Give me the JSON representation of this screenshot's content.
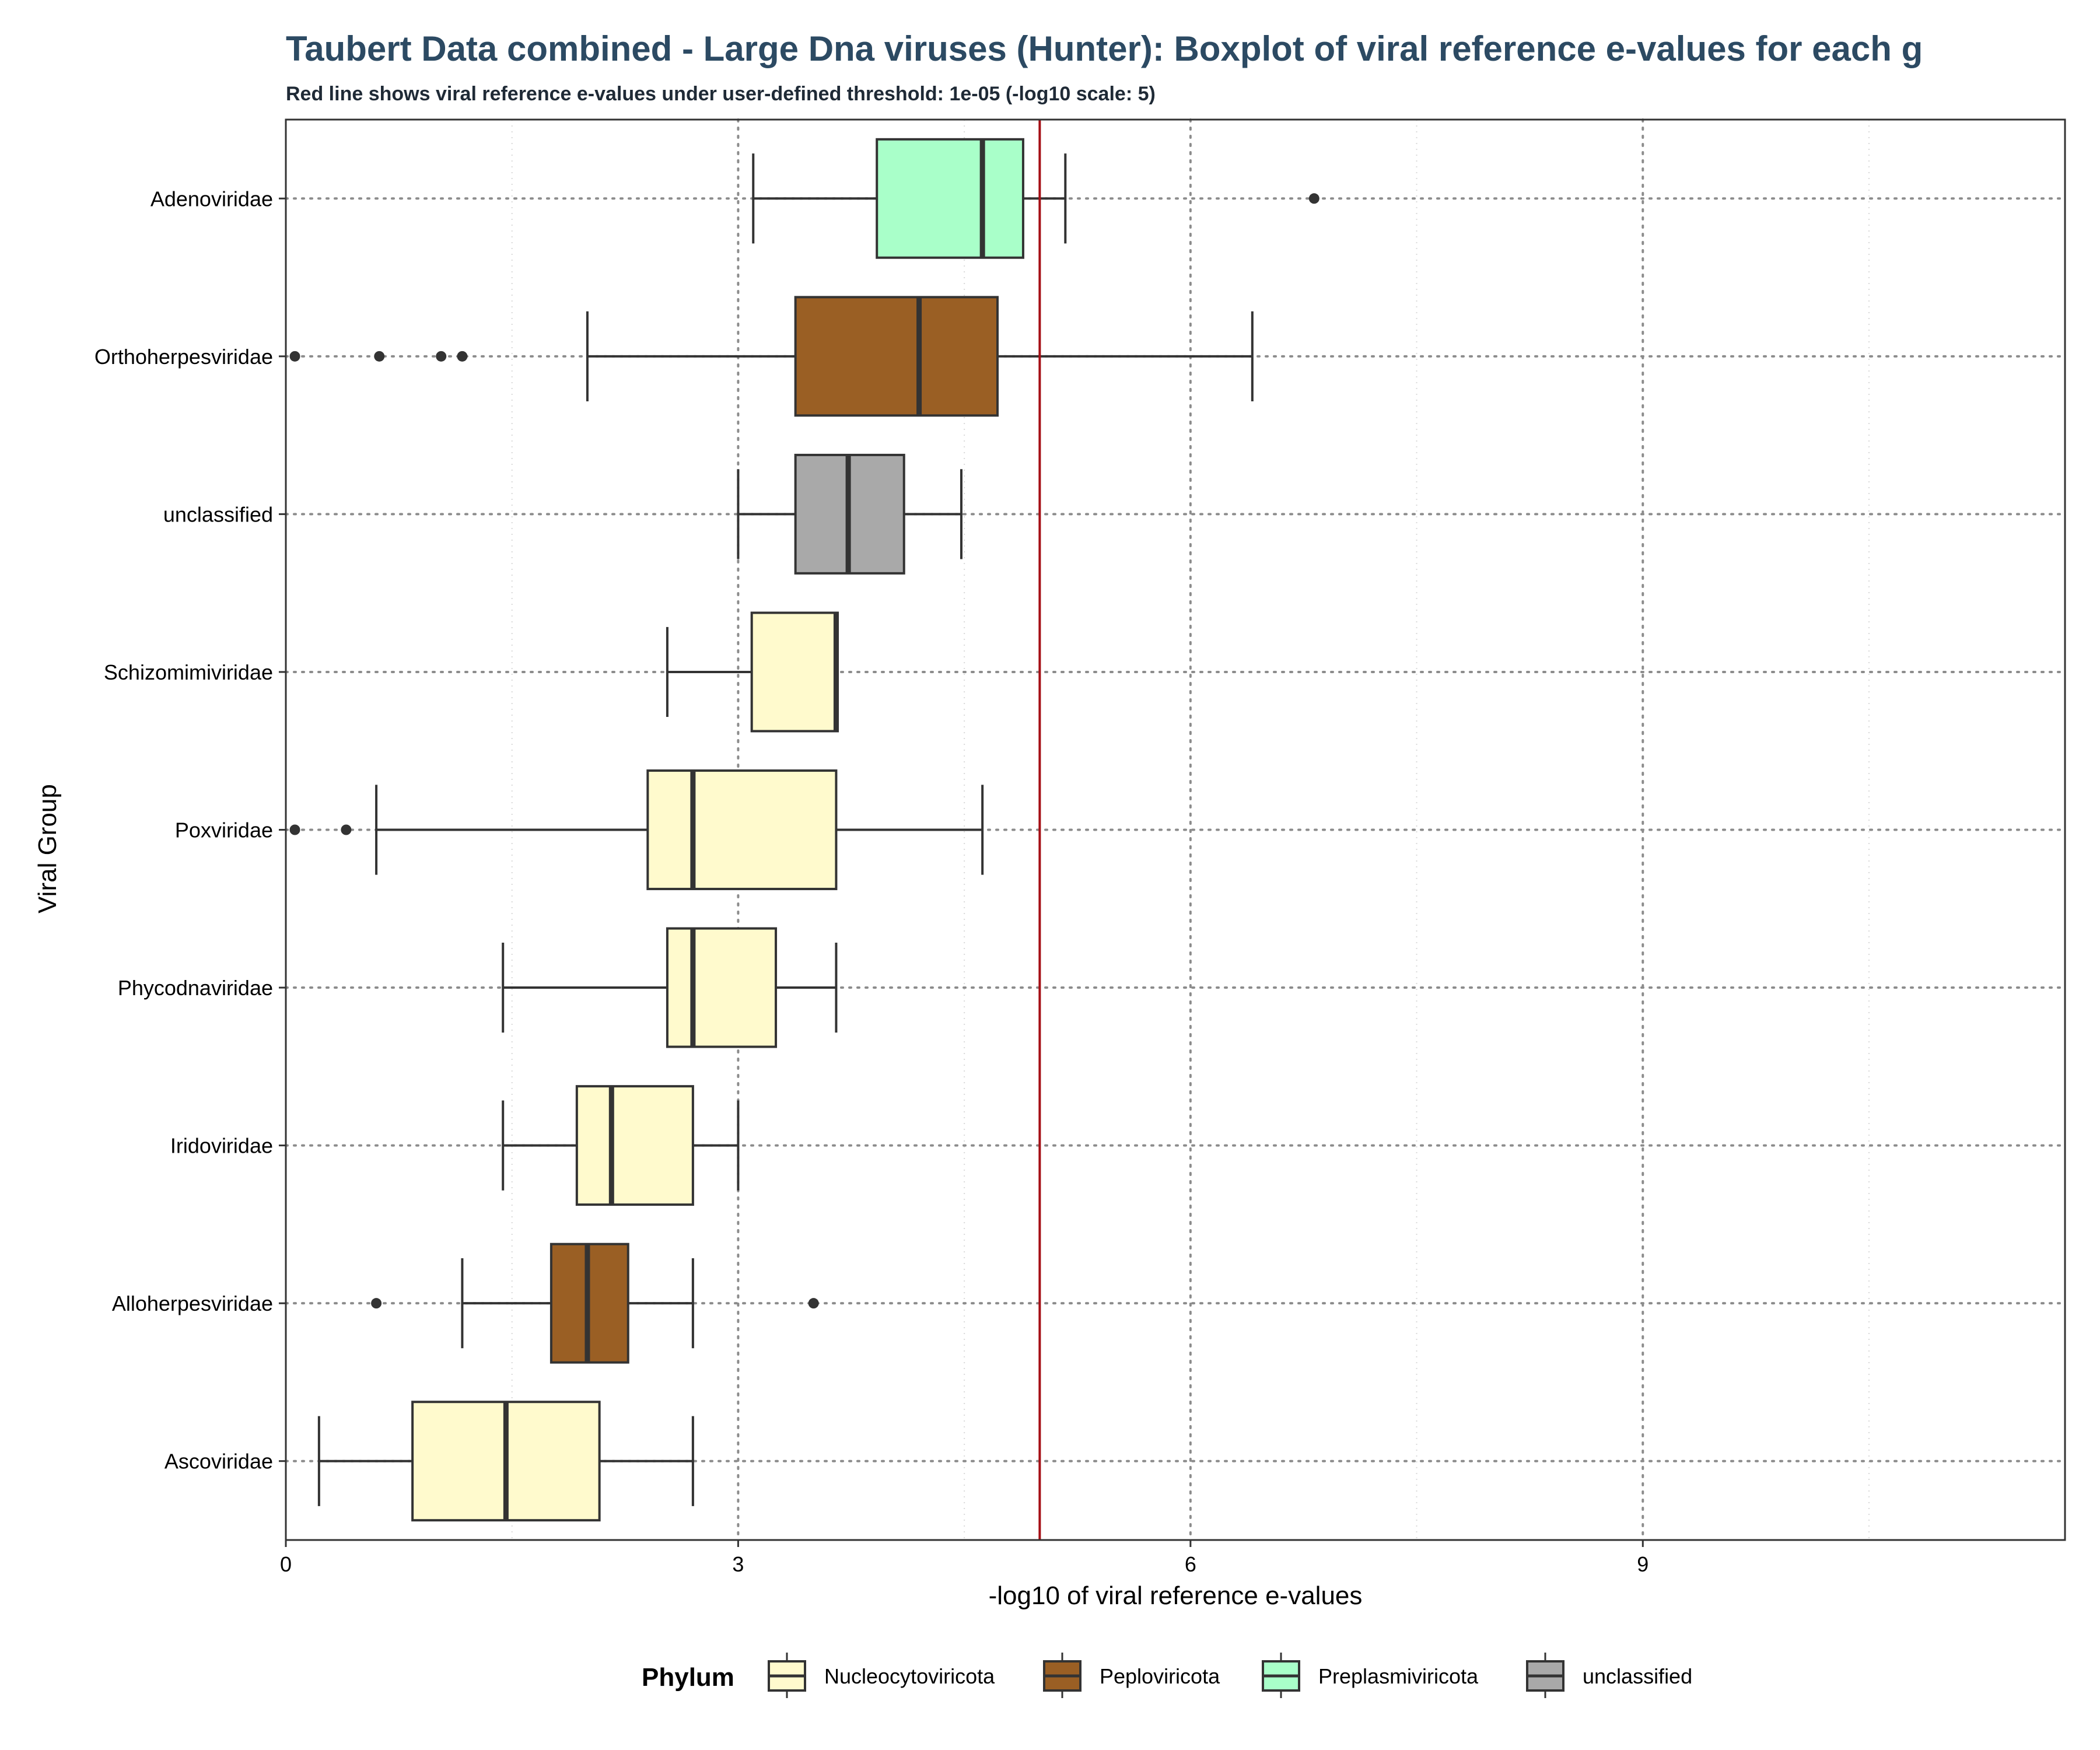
{
  "chart_data": {
    "type": "boxplot",
    "title": "Taubert Data combined - Large Dna viruses (Hunter): Boxplot of viral reference e-values for each g",
    "subtitle": "Red line shows viral reference e-values under user-defined threshold: 1e-05 (-log10 scale: 5)",
    "xlabel": "-log10 of viral reference e-values",
    "ylabel": "Viral Group",
    "xlim": [
      0,
      11.8
    ],
    "xticks": [
      0,
      3,
      6,
      9
    ],
    "threshold": 5,
    "threshold_color": "#a50f15",
    "grid": true,
    "legend_position": "bottom",
    "legend_title": "Phylum",
    "legend": [
      {
        "label": "Nucleocytoviricota",
        "color": "#fffacd"
      },
      {
        "label": "Peploviricota",
        "color": "#9a5f24"
      },
      {
        "label": "Preplasmiviricota",
        "color": "#a9ffc9"
      },
      {
        "label": "unclassified",
        "color": "#a9a9a9"
      }
    ],
    "categories": [
      "Adenoviridae",
      "Orthoherpesviridae",
      "unclassified",
      "Schizomimiviridae",
      "Poxviridae",
      "Phycodnaviridae",
      "Iridoviridae",
      "Alloherpesviridae",
      "Ascoviridae"
    ],
    "boxes": [
      {
        "group": "Adenoviridae",
        "phylum": "Preplasmiviricota",
        "whisker_low": 3.1,
        "q1": 3.92,
        "median": 4.62,
        "q3": 4.89,
        "whisker_high": 5.17,
        "outliers": [
          6.82
        ]
      },
      {
        "group": "Orthoherpesviridae",
        "phylum": "Peploviricota",
        "whisker_low": 2.0,
        "q1": 3.38,
        "median": 4.2,
        "q3": 4.72,
        "whisker_high": 6.41,
        "outliers": [
          0.06,
          0.62,
          1.03,
          1.17
        ]
      },
      {
        "group": "unclassified",
        "phylum": "unclassified",
        "whisker_low": 3.0,
        "q1": 3.38,
        "median": 3.73,
        "q3": 4.1,
        "whisker_high": 4.48,
        "outliers": []
      },
      {
        "group": "Schizomimiviridae",
        "phylum": "Nucleocytoviricota",
        "whisker_low": 2.53,
        "q1": 3.09,
        "median": 3.65,
        "q3": 3.66,
        "whisker_high": 3.66,
        "outliers": []
      },
      {
        "group": "Poxviridae",
        "phylum": "Nucleocytoviricota",
        "whisker_low": 0.6,
        "q1": 2.4,
        "median": 2.7,
        "q3": 3.65,
        "whisker_high": 4.62,
        "outliers": [
          0.06,
          0.4
        ]
      },
      {
        "group": "Phycodnaviridae",
        "phylum": "Nucleocytoviricota",
        "whisker_low": 1.44,
        "q1": 2.53,
        "median": 2.7,
        "q3": 3.25,
        "whisker_high": 3.65,
        "outliers": []
      },
      {
        "group": "Iridoviridae",
        "phylum": "Nucleocytoviricota",
        "whisker_low": 1.44,
        "q1": 1.93,
        "median": 2.16,
        "q3": 2.7,
        "whisker_high": 3.0,
        "outliers": []
      },
      {
        "group": "Alloherpesviridae",
        "phylum": "Peploviricota",
        "whisker_low": 1.17,
        "q1": 1.76,
        "median": 2.0,
        "q3": 2.27,
        "whisker_high": 2.7,
        "outliers": [
          0.6,
          3.5
        ]
      },
      {
        "group": "Ascoviridae",
        "phylum": "Nucleocytoviricota",
        "whisker_low": 0.22,
        "q1": 0.84,
        "median": 1.46,
        "q3": 2.08,
        "whisker_high": 2.7,
        "outliers": []
      }
    ]
  }
}
